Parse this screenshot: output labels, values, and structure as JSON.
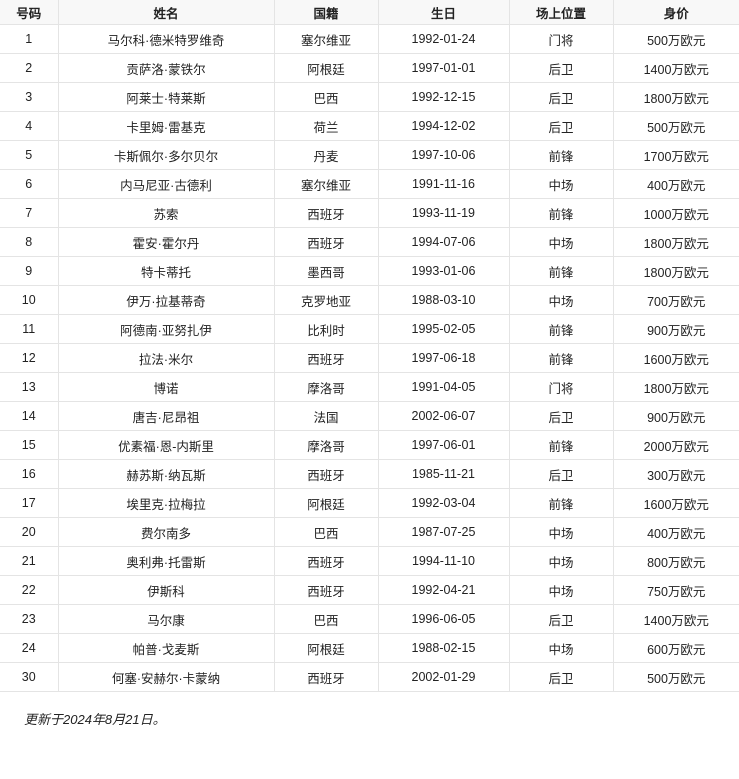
{
  "table": {
    "headers": [
      "号码",
      "姓名",
      "国籍",
      "生日",
      "场上位置",
      "身价"
    ],
    "rows": [
      [
        "1",
        "马尔科·德米特罗维奇",
        "塞尔维亚",
        "1992-01-24",
        "门将",
        "500万欧元"
      ],
      [
        "2",
        "贡萨洛·蒙铁尔",
        "阿根廷",
        "1997-01-01",
        "后卫",
        "1400万欧元"
      ],
      [
        "3",
        "阿莱士·特莱斯",
        "巴西",
        "1992-12-15",
        "后卫",
        "1800万欧元"
      ],
      [
        "4",
        "卡里姆·雷基克",
        "荷兰",
        "1994-12-02",
        "后卫",
        "500万欧元"
      ],
      [
        "5",
        "卡斯佩尔·多尔贝尔",
        "丹麦",
        "1997-10-06",
        "前锋",
        "1700万欧元"
      ],
      [
        "6",
        "内马尼亚·古德利",
        "塞尔维亚",
        "1991-11-16",
        "中场",
        "400万欧元"
      ],
      [
        "7",
        "苏索",
        "西班牙",
        "1993-11-19",
        "前锋",
        "1000万欧元"
      ],
      [
        "8",
        "霍安·霍尔丹",
        "西班牙",
        "1994-07-06",
        "中场",
        "1800万欧元"
      ],
      [
        "9",
        "特卡蒂托",
        "墨西哥",
        "1993-01-06",
        "前锋",
        "1800万欧元"
      ],
      [
        "10",
        "伊万·拉基蒂奇",
        "克罗地亚",
        "1988-03-10",
        "中场",
        "700万欧元"
      ],
      [
        "11",
        "阿德南·亚努扎伊",
        "比利时",
        "1995-02-05",
        "前锋",
        "900万欧元"
      ],
      [
        "12",
        "拉法·米尔",
        "西班牙",
        "1997-06-18",
        "前锋",
        "1600万欧元"
      ],
      [
        "13",
        "博诺",
        "摩洛哥",
        "1991-04-05",
        "门将",
        "1800万欧元"
      ],
      [
        "14",
        "唐吉·尼昂祖",
        "法国",
        "2002-06-07",
        "后卫",
        "900万欧元"
      ],
      [
        "15",
        "优素福·恩-内斯里",
        "摩洛哥",
        "1997-06-01",
        "前锋",
        "2000万欧元"
      ],
      [
        "16",
        "赫苏斯·纳瓦斯",
        "西班牙",
        "1985-11-21",
        "后卫",
        "300万欧元"
      ],
      [
        "17",
        "埃里克·拉梅拉",
        "阿根廷",
        "1992-03-04",
        "前锋",
        "1600万欧元"
      ],
      [
        "20",
        "费尔南多",
        "巴西",
        "1987-07-25",
        "中场",
        "400万欧元"
      ],
      [
        "21",
        "奥利弗·托雷斯",
        "西班牙",
        "1994-11-10",
        "中场",
        "800万欧元"
      ],
      [
        "22",
        "伊斯科",
        "西班牙",
        "1992-04-21",
        "中场",
        "750万欧元"
      ],
      [
        "23",
        "马尔康",
        "巴西",
        "1996-06-05",
        "后卫",
        "1400万欧元"
      ],
      [
        "24",
        "帕普·戈麦斯",
        "阿根廷",
        "1988-02-15",
        "中场",
        "600万欧元"
      ],
      [
        "30",
        "何塞·安赫尔·卡蒙纳",
        "西班牙",
        "2002-01-29",
        "后卫",
        "500万欧元"
      ]
    ]
  },
  "footnote": "更新于2024年8月21日。"
}
